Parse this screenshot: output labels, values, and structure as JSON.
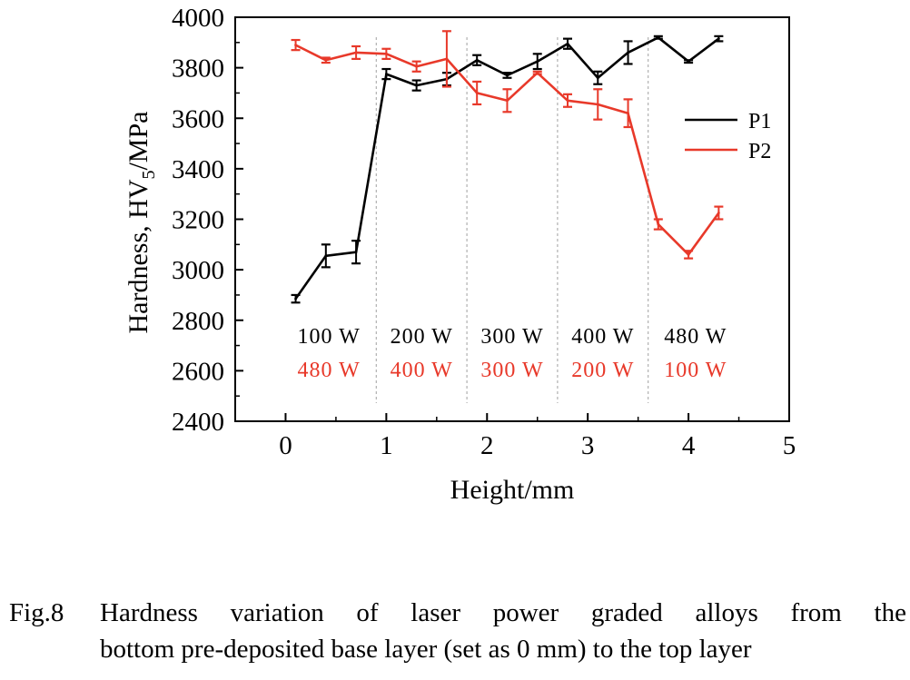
{
  "chart_data": {
    "type": "line",
    "xlabel": "Height/mm",
    "ylabel_main": "Hardness, HV",
    "ylabel_sub": "5",
    "ylabel_unit": "/MPa",
    "xlim": [
      -0.5,
      5
    ],
    "ylim": [
      2400,
      4000
    ],
    "xticks": [
      0,
      1,
      2,
      3,
      4,
      5
    ],
    "yticks": [
      2400,
      2600,
      2800,
      3000,
      3200,
      3400,
      3600,
      3800,
      4000
    ],
    "grid": false,
    "legend_position": "upper-right",
    "series": [
      {
        "name": "P1",
        "color": "#000000",
        "x": [
          0.1,
          0.4,
          0.7,
          1.0,
          1.3,
          1.6,
          1.9,
          2.2,
          2.5,
          2.8,
          3.1,
          3.4,
          3.7,
          4.0,
          4.3
        ],
        "y": [
          2885,
          3055,
          3070,
          3775,
          3730,
          3755,
          3830,
          3770,
          3825,
          3895,
          3760,
          3860,
          3920,
          3825,
          3915
        ],
        "err": [
          15,
          45,
          45,
          20,
          20,
          25,
          20,
          10,
          30,
          20,
          25,
          45,
          5,
          5,
          10
        ]
      },
      {
        "name": "P2",
        "color": "#e8392a",
        "x": [
          0.1,
          0.4,
          0.7,
          1.0,
          1.3,
          1.6,
          1.9,
          2.2,
          2.5,
          2.8,
          3.1,
          3.4,
          3.7,
          4.0,
          4.3
        ],
        "y": [
          3890,
          3830,
          3860,
          3855,
          3805,
          3835,
          3700,
          3670,
          3780,
          3670,
          3655,
          3620,
          3180,
          3060,
          3225
        ],
        "err": [
          20,
          10,
          25,
          20,
          20,
          110,
          45,
          45,
          5,
          25,
          60,
          55,
          20,
          15,
          25
        ]
      }
    ],
    "dividers": [
      0.9,
      1.8,
      2.7,
      3.6
    ],
    "segments": [
      {
        "x": 0.43,
        "p1": "100 W",
        "p2": "480 W"
      },
      {
        "x": 1.35,
        "p1": "200 W",
        "p2": "400 W"
      },
      {
        "x": 2.25,
        "p1": "300 W",
        "p2": "300 W"
      },
      {
        "x": 3.15,
        "p1": "400 W",
        "p2": "200 W"
      },
      {
        "x": 4.07,
        "p1": "480 W",
        "p2": "100 W"
      }
    ]
  },
  "caption": {
    "label": "Fig.8",
    "line1": "Hardness variation of laser power graded alloys from the",
    "line2": "bottom pre-deposited base layer (set as 0 mm) to the top layer"
  }
}
